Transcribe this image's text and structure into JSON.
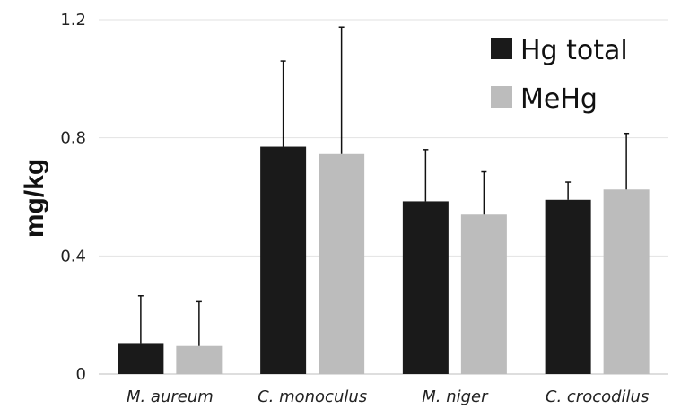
{
  "chart_data": {
    "type": "bar",
    "ylabel": "mg/kg",
    "xlabel": "",
    "ylim": [
      0,
      1.2
    ],
    "yticks": [
      {
        "value": 0,
        "label": "0"
      },
      {
        "value": 0.4,
        "label": "0.4"
      },
      {
        "value": 0.8,
        "label": "0.8"
      },
      {
        "value": 1.2,
        "label": "1.2"
      }
    ],
    "grid": true,
    "legend_position": "top-right",
    "categories": [
      "M. aureum",
      "C. monoculus",
      "M. niger",
      "C. crocodilus"
    ],
    "series": [
      {
        "name": "Hg total",
        "color": "#1a1a1a",
        "values": [
          0.105,
          0.77,
          0.585,
          0.59
        ],
        "error": [
          0.16,
          0.29,
          0.175,
          0.06
        ]
      },
      {
        "name": "MeHg",
        "color": "#bcbcbc",
        "values": [
          0.095,
          0.745,
          0.54,
          0.625
        ],
        "error": [
          0.15,
          0.43,
          0.145,
          0.19
        ]
      }
    ]
  }
}
